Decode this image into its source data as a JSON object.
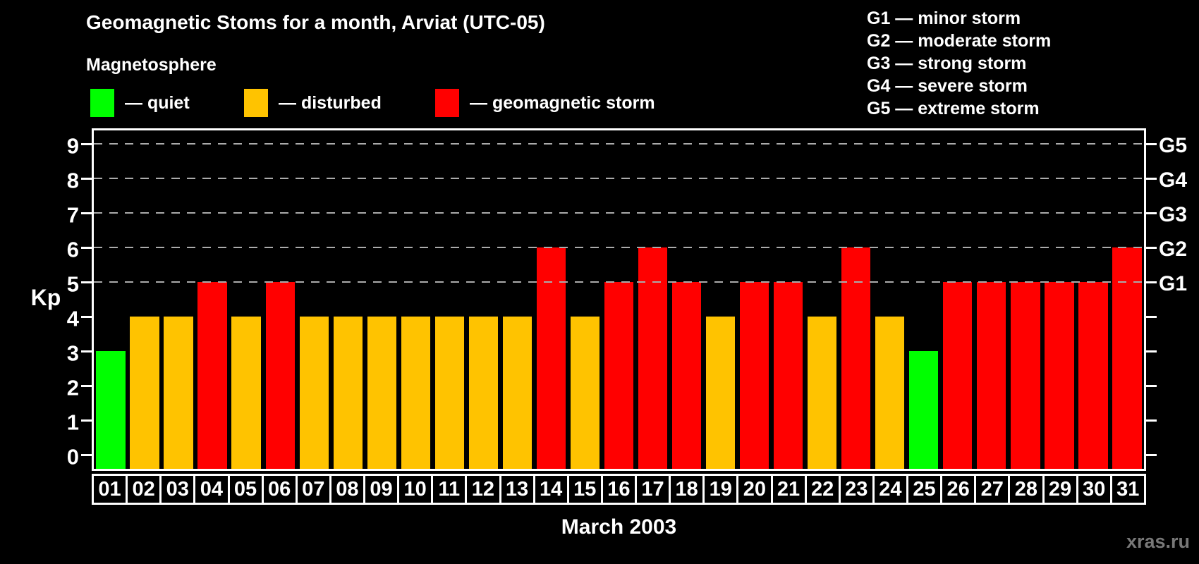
{
  "title": "Geomagnetic Stoms for a month, Arviat (UTC-05)",
  "subtitle": "Magnetosphere",
  "legend": {
    "items": [
      {
        "key": "quiet",
        "label": "— quiet",
        "color": "#00ff00"
      },
      {
        "key": "disturbed",
        "label": "— disturbed",
        "color": "#ffc300"
      },
      {
        "key": "storm",
        "label": "— geomagnetic storm",
        "color": "#ff0000"
      }
    ]
  },
  "g_scale_legend": [
    "G1 — minor storm",
    "G2 — moderate storm",
    "G3 — strong storm",
    "G4 — severe storm",
    "G5 — extreme storm"
  ],
  "axes": {
    "y_left_label": "Kp",
    "y_ticks": [
      0,
      1,
      2,
      3,
      4,
      5,
      6,
      7,
      8,
      9
    ],
    "right_scale": [
      {
        "label": "G1",
        "kp": 5
      },
      {
        "label": "G2",
        "kp": 6
      },
      {
        "label": "G3",
        "kp": 7
      },
      {
        "label": "G4",
        "kp": 8
      },
      {
        "label": "G5",
        "kp": 9
      }
    ],
    "x_title": "March 2003"
  },
  "watermark": "xras.ru",
  "colors": {
    "quiet": "#00ff00",
    "disturbed": "#ffc300",
    "storm": "#ff0000",
    "grid": "#ababab",
    "frame": "#ffffff",
    "watermark": "#787878",
    "background": "#000000"
  },
  "chart_data": {
    "type": "bar",
    "title": "Geomagnetic Stoms for a month, Arviat (UTC-05)",
    "xlabel": "March 2003",
    "ylabel": "Kp",
    "ylim": [
      0,
      9
    ],
    "grid": "dashed horizontal at Kp 5-9",
    "gridlines_at": [
      5,
      6,
      7,
      8,
      9
    ],
    "legend_position": "top",
    "categories": [
      "01",
      "02",
      "03",
      "04",
      "05",
      "06",
      "07",
      "08",
      "09",
      "10",
      "11",
      "12",
      "13",
      "14",
      "15",
      "16",
      "17",
      "18",
      "19",
      "20",
      "21",
      "22",
      "23",
      "24",
      "25",
      "26",
      "27",
      "28",
      "29",
      "30",
      "31"
    ],
    "values": [
      3,
      4,
      4,
      5,
      4,
      5,
      4,
      4,
      4,
      4,
      4,
      4,
      4,
      6,
      4,
      5,
      6,
      5,
      4,
      5,
      5,
      4,
      6,
      4,
      3,
      5,
      5,
      5,
      5,
      5,
      6
    ],
    "statuses": [
      "quiet",
      "disturbed",
      "disturbed",
      "storm",
      "disturbed",
      "storm",
      "disturbed",
      "disturbed",
      "disturbed",
      "disturbed",
      "disturbed",
      "disturbed",
      "disturbed",
      "storm",
      "disturbed",
      "storm",
      "storm",
      "storm",
      "disturbed",
      "storm",
      "storm",
      "disturbed",
      "storm",
      "disturbed",
      "quiet",
      "storm",
      "storm",
      "storm",
      "storm",
      "storm",
      "storm"
    ]
  }
}
